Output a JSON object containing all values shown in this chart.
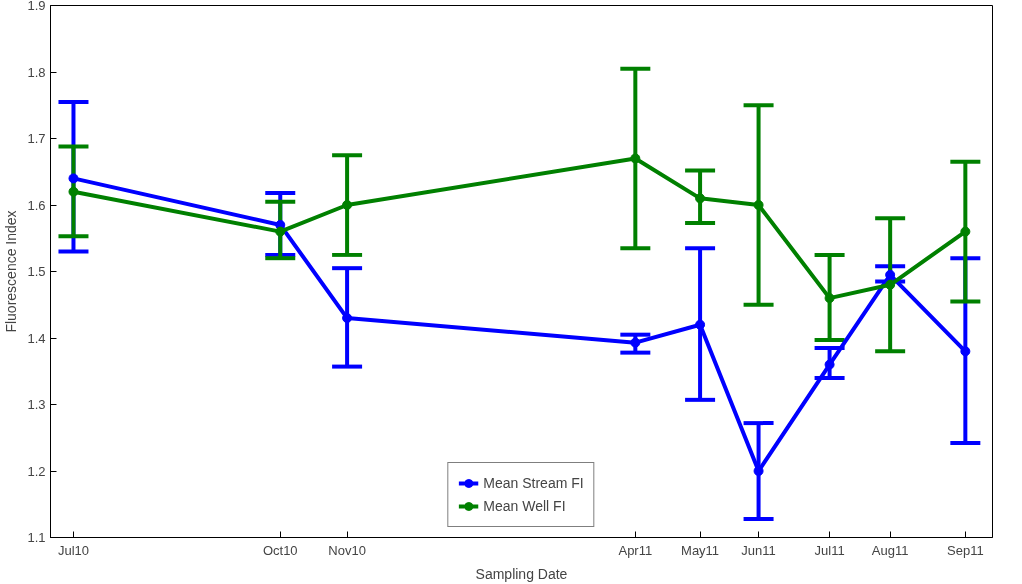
{
  "chart_data": {
    "type": "line",
    "xlabel": "Sampling Date",
    "ylabel": "Fluorescence Index",
    "x": [
      "2010-07-15",
      "2010-10-22",
      "2010-11-23",
      "2011-04-10",
      "2011-05-11",
      "2011-06-08",
      "2011-07-12",
      "2011-08-10",
      "2011-09-15"
    ],
    "xlim": [
      "2010-07-04",
      "2011-09-28"
    ],
    "xticks": [
      {
        "value": "2010-07-15",
        "label": "Jul10"
      },
      {
        "value": "2010-10-22",
        "label": "Oct10"
      },
      {
        "value": "2010-11-23",
        "label": "Nov10"
      },
      {
        "value": "2011-04-10",
        "label": "Apr11"
      },
      {
        "value": "2011-05-11",
        "label": "May11"
      },
      {
        "value": "2011-06-08",
        "label": "Jun11"
      },
      {
        "value": "2011-07-12",
        "label": "Jul11"
      },
      {
        "value": "2011-08-10",
        "label": "Aug11"
      },
      {
        "value": "2011-09-15",
        "label": "Sep11"
      }
    ],
    "ylim": [
      1.1,
      1.9
    ],
    "yticks": [
      1.1,
      1.2,
      1.3,
      1.4,
      1.5,
      1.6,
      1.7,
      1.8,
      1.9
    ],
    "series": [
      {
        "name": "Mean Stream FI",
        "color": "#0000ff",
        "values": [
          1.64,
          1.57,
          1.43,
          1.393,
          1.42,
          1.2,
          1.36,
          1.495,
          1.38
        ],
        "errors": [
          [
            1.53,
            1.755
          ],
          [
            1.525,
            1.618
          ],
          [
            1.357,
            1.505
          ],
          [
            1.378,
            1.405
          ],
          [
            1.307,
            1.535
          ],
          [
            1.128,
            1.272
          ],
          [
            1.34,
            1.385
          ],
          [
            1.485,
            1.508
          ],
          [
            1.242,
            1.52
          ]
        ]
      },
      {
        "name": "Mean Well FI",
        "color": "#008000",
        "values": [
          1.62,
          1.56,
          1.6,
          1.67,
          1.61,
          1.6,
          1.46,
          1.48,
          1.56
        ],
        "errors": [
          [
            1.553,
            1.688
          ],
          [
            1.52,
            1.605
          ],
          [
            1.525,
            1.675
          ],
          [
            1.535,
            1.805
          ],
          [
            1.573,
            1.652
          ],
          [
            1.45,
            1.75
          ],
          [
            1.397,
            1.525
          ],
          [
            1.38,
            1.58
          ],
          [
            1.455,
            1.665
          ]
        ]
      }
    ],
    "marker": "circle",
    "line_style": "solid",
    "grid": false,
    "legend": "bottom"
  }
}
